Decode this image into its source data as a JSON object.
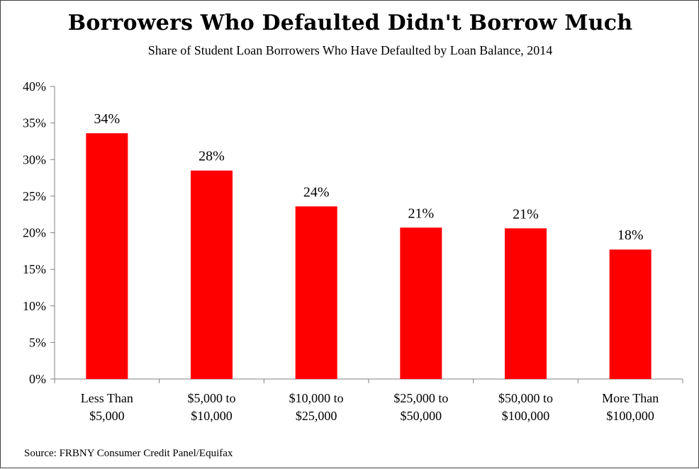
{
  "chart_data": {
    "type": "bar",
    "title": "Borrowers Who Defaulted Didn't Borrow Much",
    "subtitle": "Share of Student Loan Borrowers Who Have Defaulted by Loan Balance, 2014",
    "categories": [
      [
        "Less Than",
        "$5,000"
      ],
      [
        "$5,000 to",
        "$10,000"
      ],
      [
        "$10,000 to",
        "$25,000"
      ],
      [
        "$25,000 to",
        "$50,000"
      ],
      [
        "$50,000 to",
        "$100,000"
      ],
      [
        "More Than",
        "$100,000"
      ]
    ],
    "values": [
      33.6,
      28.5,
      23.6,
      20.7,
      20.6,
      17.7
    ],
    "data_labels": [
      "34%",
      "28%",
      "24%",
      "21%",
      "21%",
      "18%"
    ],
    "ylim": [
      0,
      40
    ],
    "yticks": [
      0,
      5,
      10,
      15,
      20,
      25,
      30,
      35,
      40
    ],
    "ytick_labels": [
      "0%",
      "5%",
      "10%",
      "15%",
      "20%",
      "25%",
      "30%",
      "35%",
      "40%"
    ],
    "bar_color": "#ff0000",
    "grid": false,
    "legend": "none",
    "source": "Source: FRBNY Consumer Credit Panel/Equifax"
  }
}
